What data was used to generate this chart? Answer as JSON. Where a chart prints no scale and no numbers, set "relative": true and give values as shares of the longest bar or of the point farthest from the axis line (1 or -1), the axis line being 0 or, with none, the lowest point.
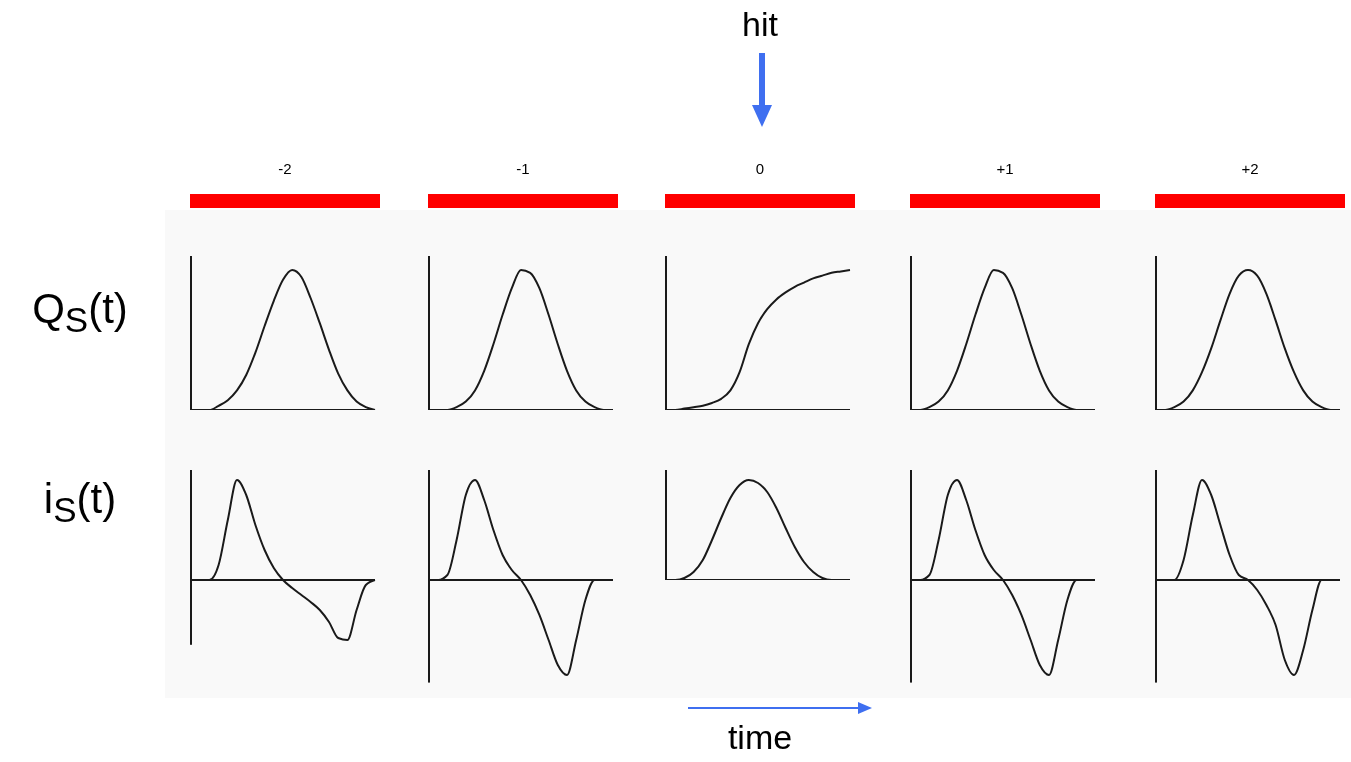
{
  "chart_data": [
    {
      "type": "line",
      "title": "-2",
      "ylabel": "Q$_{S}$(t)",
      "relative": true,
      "color": "#1a1a1a",
      "categories": [
        null,
        null,
        null,
        null,
        null,
        null,
        null,
        null,
        null,
        null,
        null,
        null,
        null,
        null,
        null,
        null,
        null,
        null,
        null,
        null,
        null
      ],
      "values": [
        0,
        0,
        0,
        0.03,
        0.07,
        0.14,
        0.25,
        0.41,
        0.6,
        0.78,
        0.93,
        1,
        0.95,
        0.8,
        0.62,
        0.43,
        0.26,
        0.14,
        0.06,
        0.02,
        0
      ]
    },
    {
      "type": "line",
      "title": "-1",
      "relative": true,
      "color": "#1a1a1a",
      "categories": [
        null,
        null,
        null,
        null,
        null,
        null,
        null,
        null,
        null,
        null,
        null,
        null,
        null,
        null,
        null,
        null,
        null,
        null,
        null,
        null,
        null
      ],
      "values": [
        0,
        0,
        0,
        0.02,
        0.06,
        0.14,
        0.28,
        0.47,
        0.68,
        0.87,
        1,
        0.98,
        0.87,
        0.68,
        0.47,
        0.28,
        0.14,
        0.06,
        0.02,
        0,
        0
      ]
    },
    {
      "type": "line",
      "title": "0",
      "annotations": [
        "hit"
      ],
      "relative": true,
      "color": "#1a1a1a",
      "categories": [
        null,
        null,
        null,
        null,
        null,
        null,
        null,
        null,
        null,
        null,
        null,
        null,
        null,
        null,
        null,
        null,
        null,
        null,
        null,
        null,
        null
      ],
      "values": [
        0,
        0,
        0.01,
        0.02,
        0.03,
        0.05,
        0.08,
        0.14,
        0.27,
        0.47,
        0.62,
        0.72,
        0.79,
        0.84,
        0.88,
        0.91,
        0.94,
        0.96,
        0.98,
        0.99,
        1
      ]
    },
    {
      "type": "line",
      "title": "+1",
      "relative": true,
      "color": "#1a1a1a",
      "categories": [
        null,
        null,
        null,
        null,
        null,
        null,
        null,
        null,
        null,
        null,
        null,
        null,
        null,
        null,
        null,
        null,
        null,
        null,
        null,
        null,
        null
      ],
      "values": [
        0,
        0,
        0.02,
        0.06,
        0.14,
        0.28,
        0.47,
        0.68,
        0.87,
        1,
        0.98,
        0.87,
        0.68,
        0.47,
        0.28,
        0.14,
        0.06,
        0.02,
        0,
        0,
        0
      ]
    },
    {
      "type": "line",
      "title": "+2",
      "relative": true,
      "color": "#1a1a1a",
      "categories": [
        null,
        null,
        null,
        null,
        null,
        null,
        null,
        null,
        null,
        null,
        null,
        null,
        null,
        null,
        null,
        null,
        null,
        null,
        null,
        null,
        null
      ],
      "values": [
        0,
        0,
        0.02,
        0.06,
        0.14,
        0.27,
        0.44,
        0.64,
        0.83,
        0.96,
        1,
        0.96,
        0.83,
        0.64,
        0.44,
        0.27,
        0.14,
        0.06,
        0.02,
        0,
        0
      ]
    },
    {
      "type": "line",
      "ylabel": "i$_{S}$(t)",
      "relative": true,
      "color": "#1a1a1a",
      "categories": [
        null,
        null,
        null,
        null,
        null,
        null,
        null,
        null,
        null,
        null,
        null,
        null,
        null,
        null,
        null,
        null,
        null,
        null,
        null,
        null,
        null
      ],
      "values": [
        0,
        0,
        0,
        0.15,
        0.6,
        1,
        0.85,
        0.55,
        0.3,
        0.12,
        0,
        -0.08,
        -0.15,
        -0.22,
        -0.3,
        -0.42,
        -0.58,
        -0.6,
        -0.3,
        -0.05,
        0
      ]
    },
    {
      "type": "line",
      "relative": true,
      "color": "#1a1a1a",
      "categories": [
        null,
        null,
        null,
        null,
        null,
        null,
        null,
        null,
        null,
        null,
        null,
        null,
        null,
        null,
        null,
        null,
        null,
        null,
        null,
        null,
        null
      ],
      "values": [
        0,
        0,
        0.05,
        0.4,
        0.85,
        1,
        0.8,
        0.5,
        0.25,
        0.1,
        0,
        -0.15,
        -0.35,
        -0.6,
        -0.85,
        -0.95,
        -0.6,
        -0.2,
        0,
        0,
        0
      ]
    },
    {
      "type": "line",
      "annotations": [
        "time"
      ],
      "relative": true,
      "color": "#1a1a1a",
      "categories": [
        null,
        null,
        null,
        null,
        null,
        null,
        null,
        null,
        null,
        null,
        null,
        null,
        null,
        null,
        null,
        null,
        null,
        null,
        null,
        null,
        null
      ],
      "values": [
        0,
        0,
        0.02,
        0.08,
        0.2,
        0.4,
        0.62,
        0.82,
        0.95,
        1,
        0.97,
        0.88,
        0.72,
        0.52,
        0.33,
        0.18,
        0.08,
        0.02,
        0,
        0,
        0
      ]
    },
    {
      "type": "line",
      "relative": true,
      "color": "#1a1a1a",
      "categories": [
        null,
        null,
        null,
        null,
        null,
        null,
        null,
        null,
        null,
        null,
        null,
        null,
        null,
        null,
        null,
        null,
        null,
        null,
        null,
        null,
        null
      ],
      "values": [
        0,
        0,
        0.05,
        0.4,
        0.85,
        1,
        0.8,
        0.5,
        0.25,
        0.1,
        0,
        -0.15,
        -0.35,
        -0.6,
        -0.85,
        -0.95,
        -0.6,
        -0.2,
        0,
        0,
        0
      ]
    },
    {
      "type": "line",
      "relative": true,
      "color": "#1a1a1a",
      "categories": [
        null,
        null,
        null,
        null,
        null,
        null,
        null,
        null,
        null,
        null,
        null,
        null,
        null,
        null,
        null,
        null,
        null,
        null,
        null,
        null,
        null
      ],
      "values": [
        0,
        0,
        0,
        0.2,
        0.65,
        1,
        0.85,
        0.55,
        0.25,
        0.05,
        0,
        -0.1,
        -0.25,
        -0.45,
        -0.8,
        -0.95,
        -0.7,
        -0.3,
        0,
        0,
        0
      ]
    }
  ]
}
